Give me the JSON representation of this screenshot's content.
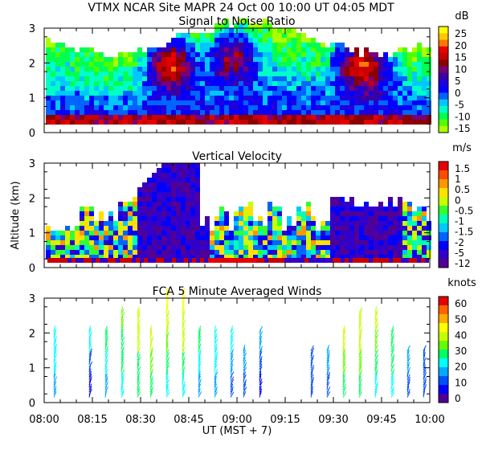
{
  "header": {
    "title": "VTMX   NCAR Site   MAPR 24 Oct 00   10:00 UT   04:05   MDT"
  },
  "chart_data": [
    {
      "type": "heatmap",
      "title": "Signal to Noise Ratio",
      "unit": "dB",
      "ylim": [
        0,
        3
      ],
      "yticks": [
        "0",
        "1",
        "2",
        "3"
      ],
      "colorbar": [
        "25",
        "20",
        "15",
        "10",
        "5",
        "0",
        "-5",
        "-10",
        "-15"
      ],
      "colors": [
        "#ffff00",
        "#ffc800",
        "#ff7800",
        "#e60000",
        "#c80000",
        "#8c0000",
        "#780078",
        "#3c00a0",
        "#1e00dc",
        "#0000ff",
        "#0064ff",
        "#00c8ff",
        "#00ffc8",
        "#00ff50",
        "#50ff00",
        "#aaff00"
      ]
    },
    {
      "type": "heatmap",
      "title": "Vertical Velocity",
      "unit": "m/s",
      "ylabel": "Altitude (km)",
      "ylim": [
        0,
        3
      ],
      "yticks": [
        "0",
        "1",
        "2",
        "3"
      ],
      "colorbar": [
        "1.5",
        "1",
        "0.5",
        "0",
        "-0.5",
        "-1",
        "-1.5",
        "-2",
        "-5",
        "-12"
      ],
      "colors": [
        "#e60000",
        "#ff4b00",
        "#ff9600",
        "#ffe100",
        "#c8ff00",
        "#32ff32",
        "#00ffb4",
        "#00c8ff",
        "#0064ff",
        "#0000ff",
        "#3200c8",
        "#500096"
      ]
    },
    {
      "type": "scatter",
      "title": "FCA 5 Minute Averaged Winds",
      "unit": "knots",
      "ylim": [
        0,
        3
      ],
      "yticks": [
        "0",
        "1",
        "2",
        "3"
      ],
      "colorbar": [
        "60",
        "50",
        "40",
        "30",
        "20",
        "10",
        "0"
      ],
      "colors": [
        "#e60000",
        "#ff6400",
        "#ffaa00",
        "#ffff00",
        "#c8ff00",
        "#64ff00",
        "#00ff64",
        "#00ffff",
        "#00aaff",
        "#0050ff",
        "#0000ff",
        "#500096"
      ],
      "xlabel": "UT  (MST + 7)",
      "xticks": [
        "08:00",
        "08:15",
        "08:30",
        "08:45",
        "09:00",
        "09:15",
        "09:30",
        "09:45",
        "10:00"
      ],
      "xlim": [
        0,
        120
      ],
      "stations": [
        {
          "t": 3,
          "speeds": [
            20,
            22,
            25
          ]
        },
        {
          "t": 14,
          "speeds": [
            10,
            15,
            25
          ]
        },
        {
          "t": 19,
          "speeds": [
            20,
            25,
            28
          ]
        },
        {
          "t": 24,
          "speeds": [
            25,
            30,
            32,
            35
          ]
        },
        {
          "t": 29,
          "speeds": [
            28,
            32,
            38,
            40
          ]
        },
        {
          "t": 33,
          "speeds": [
            30,
            35,
            40
          ]
        },
        {
          "t": 38,
          "speeds": [
            25,
            30,
            35,
            40,
            45
          ]
        },
        {
          "t": 43,
          "speeds": [
            25,
            32,
            38,
            42,
            45
          ]
        },
        {
          "t": 48,
          "speeds": [
            20,
            25,
            30
          ]
        },
        {
          "t": 53,
          "speeds": [
            18,
            22,
            25
          ]
        },
        {
          "t": 58,
          "speeds": [
            15,
            20,
            22
          ]
        },
        {
          "t": 62,
          "speeds": [
            12,
            18
          ]
        },
        {
          "t": 67,
          "speeds": [
            10,
            15,
            18
          ]
        },
        {
          "t": 83,
          "speeds": [
            12,
            15
          ]
        },
        {
          "t": 88,
          "speeds": [
            12,
            18
          ]
        },
        {
          "t": 93,
          "speeds": [
            30,
            35,
            38
          ]
        },
        {
          "t": 98,
          "speeds": [
            28,
            34,
            38,
            40
          ]
        },
        {
          "t": 103,
          "speeds": [
            25,
            32,
            36,
            38
          ]
        },
        {
          "t": 108,
          "speeds": [
            22,
            30,
            32
          ]
        },
        {
          "t": 113,
          "speeds": [
            15,
            20
          ]
        },
        {
          "t": 118,
          "speeds": [
            12,
            15
          ]
        }
      ]
    }
  ]
}
